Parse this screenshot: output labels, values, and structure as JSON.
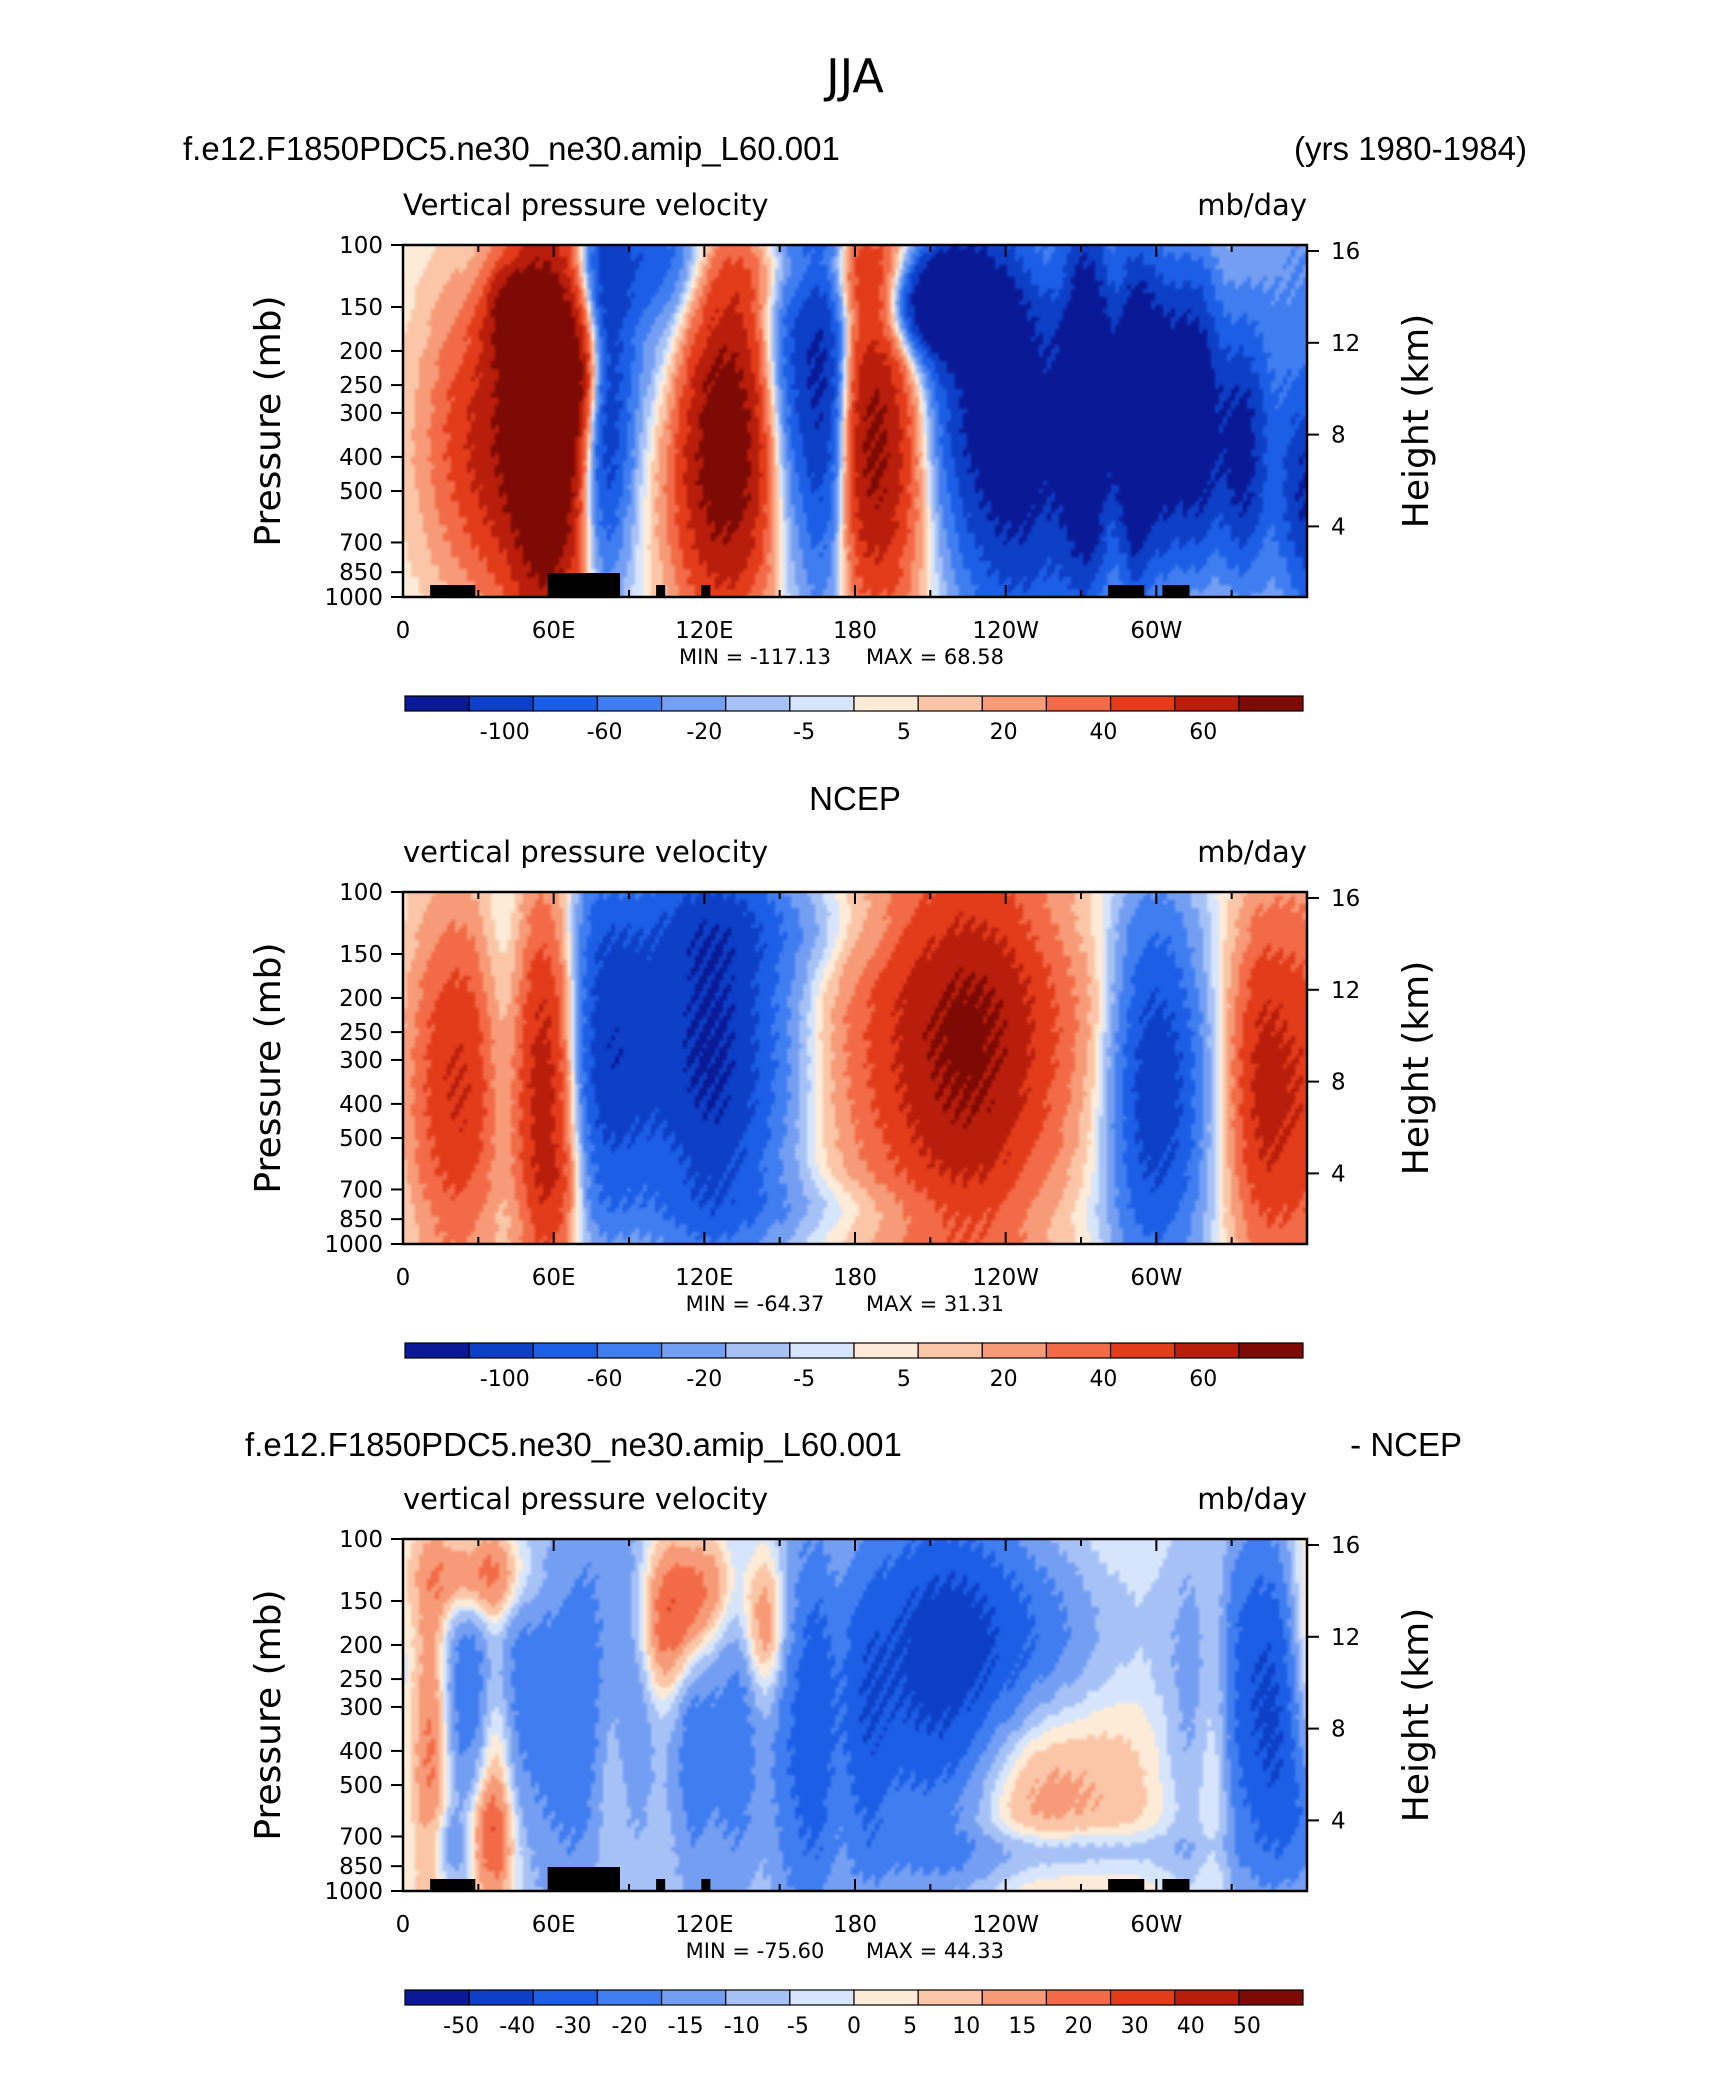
{
  "figure_title": "JJA",
  "colors": {
    "blue_red_11": [
      "#0a1a96",
      "#0d3fc7",
      "#1c5ee6",
      "#3f7df0",
      "#739ef2",
      "#a6c1f5",
      "#d6e5fb",
      "#fdebd8",
      "#fbc6a7",
      "#f79a77",
      "#f26a47",
      "#e23c1b",
      "#b81e0b",
      "#7d0a04"
    ]
  },
  "chart_data": [
    {
      "type": "heatmap",
      "panel_title_left": "f.e12.F1850PDC5.ne30_ne30.amip_L60.001",
      "panel_title_right": "(yrs 1980-1984)",
      "subtitle_left": "Vertical pressure velocity",
      "subtitle_right": "mb/day",
      "ylabel": "Pressure (mb)",
      "ylabel_right": "Height (km)",
      "x_ticklabels": [
        "0",
        "60E",
        "120E",
        "180",
        "120W",
        "60W"
      ],
      "xlim": [
        0,
        360
      ],
      "y_ticklabels": [
        "100",
        "150",
        "200",
        "250",
        "300",
        "400",
        "500",
        "700",
        "850",
        "1000"
      ],
      "ylim": [
        1000,
        100
      ],
      "y_right_ticklabels": [
        "16",
        "12",
        "8",
        "4"
      ],
      "min_text": "MIN = -117.13",
      "max_text": "MAX =  68.58",
      "colorbar_labels": [
        "-100",
        "-60",
        "-20",
        "-5",
        "5",
        "20",
        "40",
        "60"
      ]
    },
    {
      "type": "heatmap",
      "panel_title_center": "NCEP",
      "subtitle_left": "vertical pressure velocity",
      "subtitle_right": "mb/day",
      "ylabel": "Pressure (mb)",
      "ylabel_right": "Height (km)",
      "x_ticklabels": [
        "0",
        "60E",
        "120E",
        "180",
        "120W",
        "60W"
      ],
      "xlim": [
        0,
        360
      ],
      "y_ticklabels": [
        "100",
        "150",
        "200",
        "250",
        "300",
        "400",
        "500",
        "700",
        "850",
        "1000"
      ],
      "ylim": [
        1000,
        100
      ],
      "y_right_ticklabels": [
        "16",
        "12",
        "8",
        "4"
      ],
      "min_text": "MIN = -64.37",
      "max_text": "MAX =  31.31",
      "colorbar_labels": [
        "-100",
        "-60",
        "-20",
        "-5",
        "5",
        "20",
        "40",
        "60"
      ]
    },
    {
      "type": "heatmap",
      "panel_title_left": "f.e12.F1850PDC5.ne30_ne30.amip_L60.001",
      "panel_title_right": "- NCEP",
      "subtitle_left": "vertical pressure velocity",
      "subtitle_right": "mb/day",
      "ylabel": "Pressure (mb)",
      "ylabel_right": "Height (km)",
      "x_ticklabels": [
        "0",
        "60E",
        "120E",
        "180",
        "120W",
        "60W"
      ],
      "xlim": [
        0,
        360
      ],
      "y_ticklabels": [
        "100",
        "150",
        "200",
        "250",
        "300",
        "400",
        "500",
        "700",
        "850",
        "1000"
      ],
      "ylim": [
        1000,
        100
      ],
      "y_right_ticklabels": [
        "16",
        "12",
        "8",
        "4"
      ],
      "min_text": "MIN = -75.60",
      "max_text": "MAX =  44.33",
      "colorbar_labels": [
        "-50",
        "-40",
        "-30",
        "-20",
        "-15",
        "-10",
        "-5",
        "0",
        "5",
        "10",
        "15",
        "20",
        "30",
        "40",
        "50"
      ]
    }
  ],
  "fields": [
    {
      "blobs": [
        [
          0.16,
          0.5,
          0.03,
          0.42,
          4,
          11
        ],
        [
          0.1,
          0.55,
          0.05,
          0.3,
          2,
          13
        ],
        [
          0.35,
          0.55,
          0.06,
          0.35,
          4,
          12
        ],
        [
          0.12,
          0.2,
          0.02,
          0.1,
          2,
          12
        ],
        [
          0.2,
          0.35,
          0.02,
          0.15,
          2,
          12
        ],
        [
          0.65,
          0.35,
          0.06,
          0.38,
          -3,
          11
        ],
        [
          0.6,
          0.15,
          0.035,
          0.1,
          -5,
          10
        ],
        [
          0.7,
          0.7,
          0.05,
          0.35,
          -2,
          11
        ],
        [
          0.84,
          0.5,
          0.02,
          0.32,
          -4,
          12
        ],
        [
          0.88,
          0.5,
          0.02,
          0.3,
          -4,
          12
        ],
        [
          0.93,
          0.6,
          0.02,
          0.25,
          -3,
          12
        ],
        [
          0.76,
          0.45,
          0.02,
          0.35,
          -5,
          11
        ],
        [
          0.81,
          0.5,
          0.015,
          0.32,
          -5,
          12
        ],
        [
          1.0,
          0.72,
          0.02,
          0.2,
          -2,
          12
        ],
        [
          0.99,
          0.4,
          0.06,
          0.55,
          -1,
          14
        ],
        [
          0.52,
          0.55,
          0.045,
          0.35,
          3,
          11
        ],
        [
          0.56,
          0.05,
          0.16,
          0.08,
          0.5,
          8
        ],
        [
          0.45,
          0.08,
          0.1,
          0.1,
          0.5,
          8
        ],
        [
          0.82,
          0.62,
          0.1,
          0.4,
          1.2,
          9
        ],
        [
          0.22,
          0.42,
          0.02,
          0.35,
          -3,
          12
        ],
        [
          0.29,
          0.38,
          0.04,
          0.42,
          -2,
          12
        ],
        [
          0.27,
          0.05,
          0.06,
          0.1,
          -1,
          12
        ],
        [
          0.43,
          0.4,
          0.03,
          0.4,
          -3,
          12
        ],
        [
          0.47,
          0.45,
          0.02,
          0.4,
          -3,
          12
        ]
      ],
      "land": [
        [
          0.03,
          0.08
        ],
        [
          0.16,
          0.24
        ],
        [
          0.28,
          0.29
        ],
        [
          0.33,
          0.34
        ],
        [
          0.78,
          0.82
        ],
        [
          0.84,
          0.87
        ]
      ]
    },
    {
      "blobs": [
        [
          0.16,
          0.55,
          0.025,
          0.42,
          1.6,
          11
        ],
        [
          0.1,
          0.55,
          0.04,
          0.35,
          1.6,
          12
        ],
        [
          0.17,
          0.85,
          0.02,
          0.1,
          0.5,
          10
        ],
        [
          0.21,
          0.45,
          0.025,
          0.38,
          -1.4,
          11
        ],
        [
          0.25,
          0.45,
          0.03,
          0.3,
          -1.5,
          11
        ],
        [
          0.37,
          0.45,
          0.06,
          0.4,
          -1.6,
          11
        ],
        [
          0.33,
          0.45,
          0.04,
          0.4,
          -1.4,
          12
        ],
        [
          0.34,
          0.1,
          0.08,
          0.1,
          -0.4,
          10
        ],
        [
          0.63,
          0.5,
          0.06,
          0.45,
          1.6,
          11
        ],
        [
          0.64,
          0.3,
          0.1,
          0.3,
          0.8,
          9
        ],
        [
          0.55,
          0.5,
          0.1,
          0.4,
          0.7,
          9
        ],
        [
          0.82,
          0.55,
          0.03,
          0.38,
          -1.6,
          11
        ],
        [
          0.86,
          0.55,
          0.03,
          0.35,
          -1.2,
          12
        ],
        [
          0.99,
          0.55,
          0.05,
          0.4,
          1.6,
          11
        ],
        [
          0.95,
          0.55,
          0.02,
          0.3,
          0.8,
          12
        ],
        [
          0.11,
          0.5,
          0.02,
          0.35,
          -1.3,
          12
        ],
        [
          0.04,
          0.55,
          0.03,
          0.35,
          1.0,
          12
        ],
        [
          0.5,
          0.1,
          0.2,
          0.1,
          -0.3,
          10
        ],
        [
          0.45,
          0.9,
          0.2,
          0.06,
          -0.3,
          10
        ]
      ],
      "land": []
    },
    {
      "blobs": [
        [
          0.05,
          0.4,
          0.03,
          0.35,
          -0.6,
          12
        ],
        [
          0.03,
          0.55,
          0.015,
          0.35,
          1.2,
          12
        ],
        [
          0.1,
          0.55,
          0.015,
          0.35,
          1.2,
          12
        ],
        [
          0.23,
          0.6,
          0.02,
          0.3,
          0.8,
          12
        ],
        [
          0.17,
          0.5,
          0.03,
          0.45,
          -0.8,
          11
        ],
        [
          0.21,
          0.5,
          0.02,
          0.4,
          -0.8,
          12
        ],
        [
          0.25,
          0.45,
          0.02,
          0.4,
          -1.0,
          12
        ],
        [
          0.32,
          0.5,
          0.02,
          0.4,
          -1.0,
          12
        ],
        [
          0.37,
          0.5,
          0.02,
          0.4,
          -1.0,
          12
        ],
        [
          0.43,
          0.55,
          0.02,
          0.45,
          -1.0,
          12
        ],
        [
          0.46,
          0.55,
          0.015,
          0.4,
          -1.0,
          12
        ],
        [
          0.51,
          0.55,
          0.02,
          0.35,
          -0.9,
          12
        ],
        [
          0.08,
          0.1,
          0.04,
          0.1,
          1.3,
          11
        ],
        [
          0.1,
          0.38,
          0.03,
          0.3,
          -1.2,
          11
        ],
        [
          0.33,
          0.12,
          0.03,
          0.12,
          0.9,
          10
        ],
        [
          0.4,
          0.25,
          0.02,
          0.15,
          1.0,
          12
        ],
        [
          0.3,
          0.25,
          0.03,
          0.15,
          1.2,
          11
        ],
        [
          0.58,
          0.4,
          0.06,
          0.4,
          -1.3,
          11
        ],
        [
          0.63,
          0.3,
          0.07,
          0.25,
          -0.9,
          11
        ],
        [
          0.72,
          0.3,
          0.08,
          0.2,
          -0.7,
          11
        ],
        [
          0.69,
          0.65,
          0.05,
          0.25,
          0.7,
          11
        ],
        [
          0.69,
          0.92,
          0.1,
          0.06,
          -0.4,
          10
        ],
        [
          0.75,
          0.88,
          0.12,
          0.04,
          -0.3,
          10
        ],
        [
          0.8,
          0.55,
          0.06,
          0.4,
          0.35,
          11
        ],
        [
          0.9,
          0.5,
          0.015,
          0.4,
          0.9,
          12
        ],
        [
          0.93,
          0.45,
          0.05,
          0.4,
          -1.4,
          11
        ],
        [
          0.97,
          0.5,
          0.02,
          0.3,
          -0.9,
          12
        ],
        [
          1.0,
          0.3,
          0.02,
          0.3,
          0.7,
          12
        ],
        [
          1.0,
          0.8,
          0.02,
          0.15,
          -0.6,
          12
        ],
        [
          0.09,
          0.85,
          0.02,
          0.1,
          0.8,
          12
        ],
        [
          0.05,
          0.88,
          0.02,
          0.08,
          -0.6,
          12
        ]
      ],
      "land": [
        [
          0.03,
          0.08
        ],
        [
          0.16,
          0.24
        ],
        [
          0.28,
          0.29
        ],
        [
          0.33,
          0.34
        ],
        [
          0.78,
          0.82
        ],
        [
          0.84,
          0.87
        ]
      ]
    }
  ]
}
